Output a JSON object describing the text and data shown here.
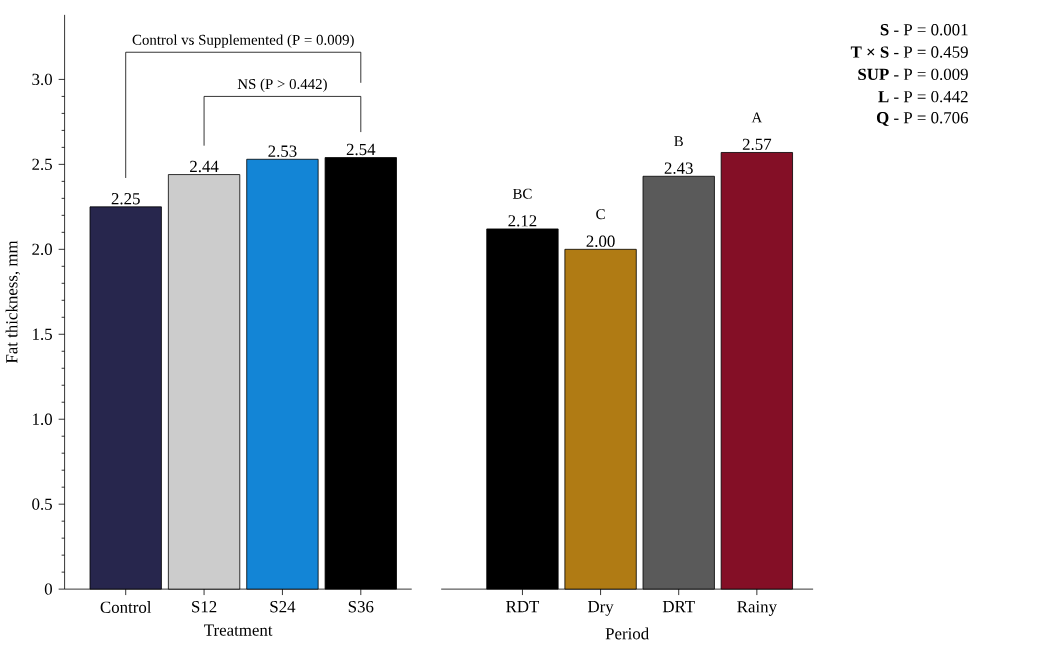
{
  "chart_data": [
    {
      "type": "bar",
      "xlabel": "Treatment",
      "ylabel": "Fat thickness, mm",
      "categories": [
        "Control",
        "S12",
        "S24",
        "S36"
      ],
      "values": [
        2.25,
        2.44,
        2.53,
        2.54
      ],
      "colors": [
        "#27264d",
        "#cccccc",
        "#1385d6",
        "#000000"
      ],
      "value_labels": [
        "2.25",
        "2.44",
        "2.53",
        "2.54"
      ],
      "ylim": [
        0,
        3.38
      ],
      "yticks": [
        0,
        {
          "value": 0.5,
          "label": "0.5"
        },
        {
          "value": 1,
          "label": "1.0"
        },
        {
          "value": 1.5,
          "label": "1.5"
        },
        {
          "value": 2,
          "label": "2.0"
        },
        {
          "value": 2.5,
          "label": "2.5"
        },
        {
          "value": 3,
          "label": "3.0"
        }
      ],
      "grid": false,
      "annotations": [
        "Control vs Supplemented (P = 0.009)",
        "NS (P > 0.442)"
      ]
    },
    {
      "type": "bar",
      "xlabel": "Period",
      "categories": [
        "RDT",
        "Dry",
        "DRT",
        "Rainy"
      ],
      "values": [
        2.12,
        2.0,
        2.43,
        2.57
      ],
      "colors": [
        "#000000",
        "#b07b14",
        "#5a5a5a",
        "#840f26"
      ],
      "value_labels": [
        "2.12",
        "2.00",
        "2.43",
        "2.57"
      ],
      "tick_labels": "x",
      "grid": false,
      "annotations": [
        {
          "text": "BC",
          "x": "RDT",
          "y": 2.12
        },
        {
          "text": "C",
          "x": "Dry",
          "y": 2.0
        },
        {
          "text": "B",
          "x": "DRT",
          "y": 2.43
        },
        {
          "text": "A",
          "x": "Rainy",
          "y": 2.57
        },
        "**S** - P = 0.001",
        "**T × S** - P = 0.459",
        "**SUP** - P = 0.009",
        "**L** - P = 0.442",
        "**Q** - P = 0.706"
      ]
    }
  ]
}
